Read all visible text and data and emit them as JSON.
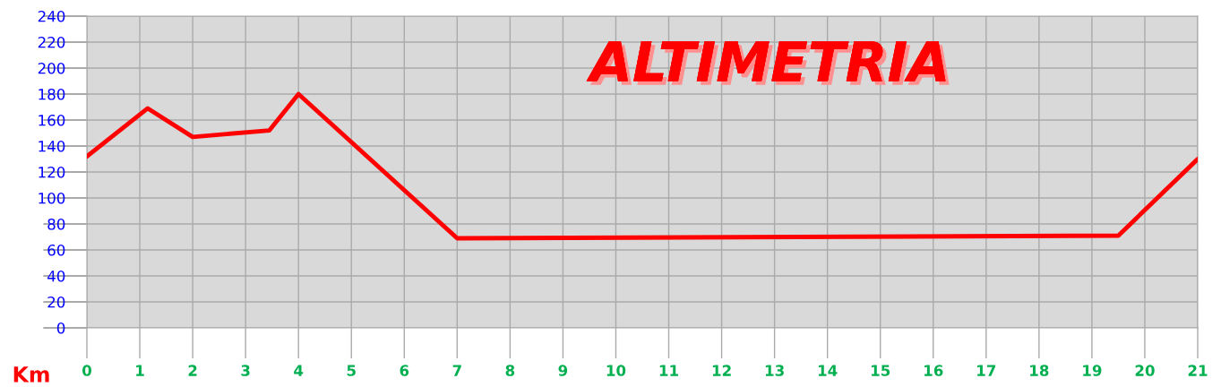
{
  "chart_data": {
    "type": "line",
    "title": "ALTIMETRIA",
    "xlabel": "Km",
    "series": [
      {
        "color": "#ff0000",
        "x": [
          0,
          1.15,
          2,
          3.45,
          4,
          7,
          19.5,
          21
        ],
        "values": [
          132,
          169,
          147,
          152,
          180,
          69,
          71,
          130
        ]
      }
    ],
    "xlim": [
      0,
      21
    ],
    "xticks": [
      0,
      1,
      2,
      3,
      4,
      5,
      6,
      7,
      8,
      9,
      10,
      11,
      12,
      13,
      14,
      15,
      16,
      17,
      18,
      19,
      20,
      21
    ],
    "ylim": [
      0,
      240
    ],
    "yticks": [
      0,
      20,
      40,
      60,
      80,
      100,
      120,
      140,
      160,
      180,
      200,
      220,
      240
    ],
    "grid": true
  }
}
